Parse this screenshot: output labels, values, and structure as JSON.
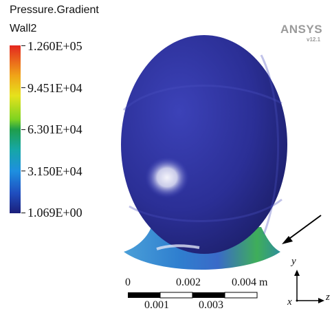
{
  "legend": {
    "title_line1": "Pressure.Gradient",
    "title_line2": "Wall2",
    "max": "1.260E+05",
    "v2": "9.451E+04",
    "v3": "6.301E+04",
    "v4": "3.150E+04",
    "min": "1.069E+00"
  },
  "logo": {
    "name": "ANSYS",
    "version": "v12.1"
  },
  "scale_bar": {
    "top_labels": [
      "0",
      "0.002",
      "0.004 m"
    ],
    "bottom_labels": [
      "0.001",
      "0.003"
    ]
  },
  "axes": {
    "y": "y",
    "x": "x",
    "z": "z"
  },
  "colors": {
    "body": "#2b2f96",
    "highlight": "#e9eaf5",
    "arrow": "#000000"
  }
}
